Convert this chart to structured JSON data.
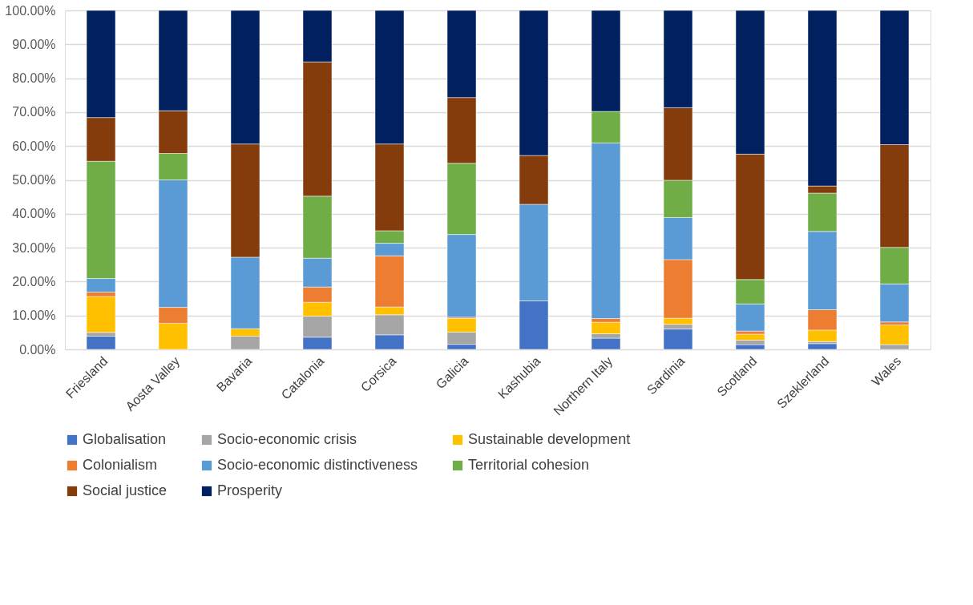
{
  "chart_data": {
    "type": "bar",
    "stacked": true,
    "categories": [
      "Friesland",
      "Aosta Valley",
      "Bavaria",
      "Catalonia",
      "Corsica",
      "Galicia",
      "Kashubia",
      "Northern Italy",
      "Sardinia",
      "Scotland",
      "Szeklerland",
      "Wales"
    ],
    "series": [
      {
        "name": "Globalisation",
        "color": "#4472c4",
        "values": [
          3.9,
          0,
          0,
          3.6,
          4.3,
          1.5,
          14.3,
          3.3,
          6.0,
          1.4,
          1.7,
          0
        ]
      },
      {
        "name": "Socio-economic crisis",
        "color": "#a5a5a5",
        "values": [
          1.1,
          0,
          3.9,
          6.2,
          5.9,
          3.6,
          0,
          1.3,
          1.4,
          1.3,
          0.6,
          1.4
        ]
      },
      {
        "name": "Sustainable development",
        "color": "#ffc000",
        "values": [
          10.6,
          7.7,
          2.2,
          4.1,
          2.3,
          4.0,
          0,
          3.4,
          1.8,
          1.8,
          3.4,
          5.8
        ]
      },
      {
        "name": "Colonialism",
        "color": "#ed7d31",
        "values": [
          1.3,
          4.7,
          0,
          4.5,
          15.1,
          0.4,
          0,
          1.1,
          17.3,
          0.9,
          6.0,
          0.9
        ]
      },
      {
        "name": "Socio-economic distinctiveness",
        "color": "#5b9bd5",
        "values": [
          4.0,
          37.6,
          21.1,
          8.5,
          3.7,
          24.4,
          28.5,
          51.8,
          12.4,
          8.0,
          23.1,
          11.2
        ]
      },
      {
        "name": "Territorial cohesion",
        "color": "#70ad47",
        "values": [
          34.6,
          7.8,
          0,
          18.3,
          3.7,
          21.0,
          0,
          9.3,
          11.0,
          7.2,
          11.3,
          10.8
        ]
      },
      {
        "name": "Social justice",
        "color": "#843c0c",
        "values": [
          12.9,
          12.6,
          33.4,
          39.6,
          25.6,
          19.4,
          14.4,
          0,
          21.4,
          37.0,
          2.1,
          30.3
        ]
      },
      {
        "name": "Prosperity",
        "color": "#002060",
        "values": [
          31.6,
          29.6,
          39.4,
          15.2,
          39.4,
          25.7,
          42.8,
          29.8,
          28.7,
          42.4,
          51.8,
          39.6
        ]
      }
    ],
    "ylim": [
      0,
      100
    ],
    "yticks": [
      {
        "value": 0,
        "label": "0.00%"
      },
      {
        "value": 10,
        "label": "10.00%"
      },
      {
        "value": 20,
        "label": "20.00%"
      },
      {
        "value": 30,
        "label": "30.00%"
      },
      {
        "value": 40,
        "label": "40.00%"
      },
      {
        "value": 50,
        "label": "50.00%"
      },
      {
        "value": 60,
        "label": "60.00%"
      },
      {
        "value": 70,
        "label": "70.00%"
      },
      {
        "value": 80,
        "label": "80.00%"
      },
      {
        "value": 90,
        "label": "90.00%"
      },
      {
        "value": 100,
        "label": "100.00%"
      }
    ],
    "grid": "y",
    "legend": "bottom"
  }
}
